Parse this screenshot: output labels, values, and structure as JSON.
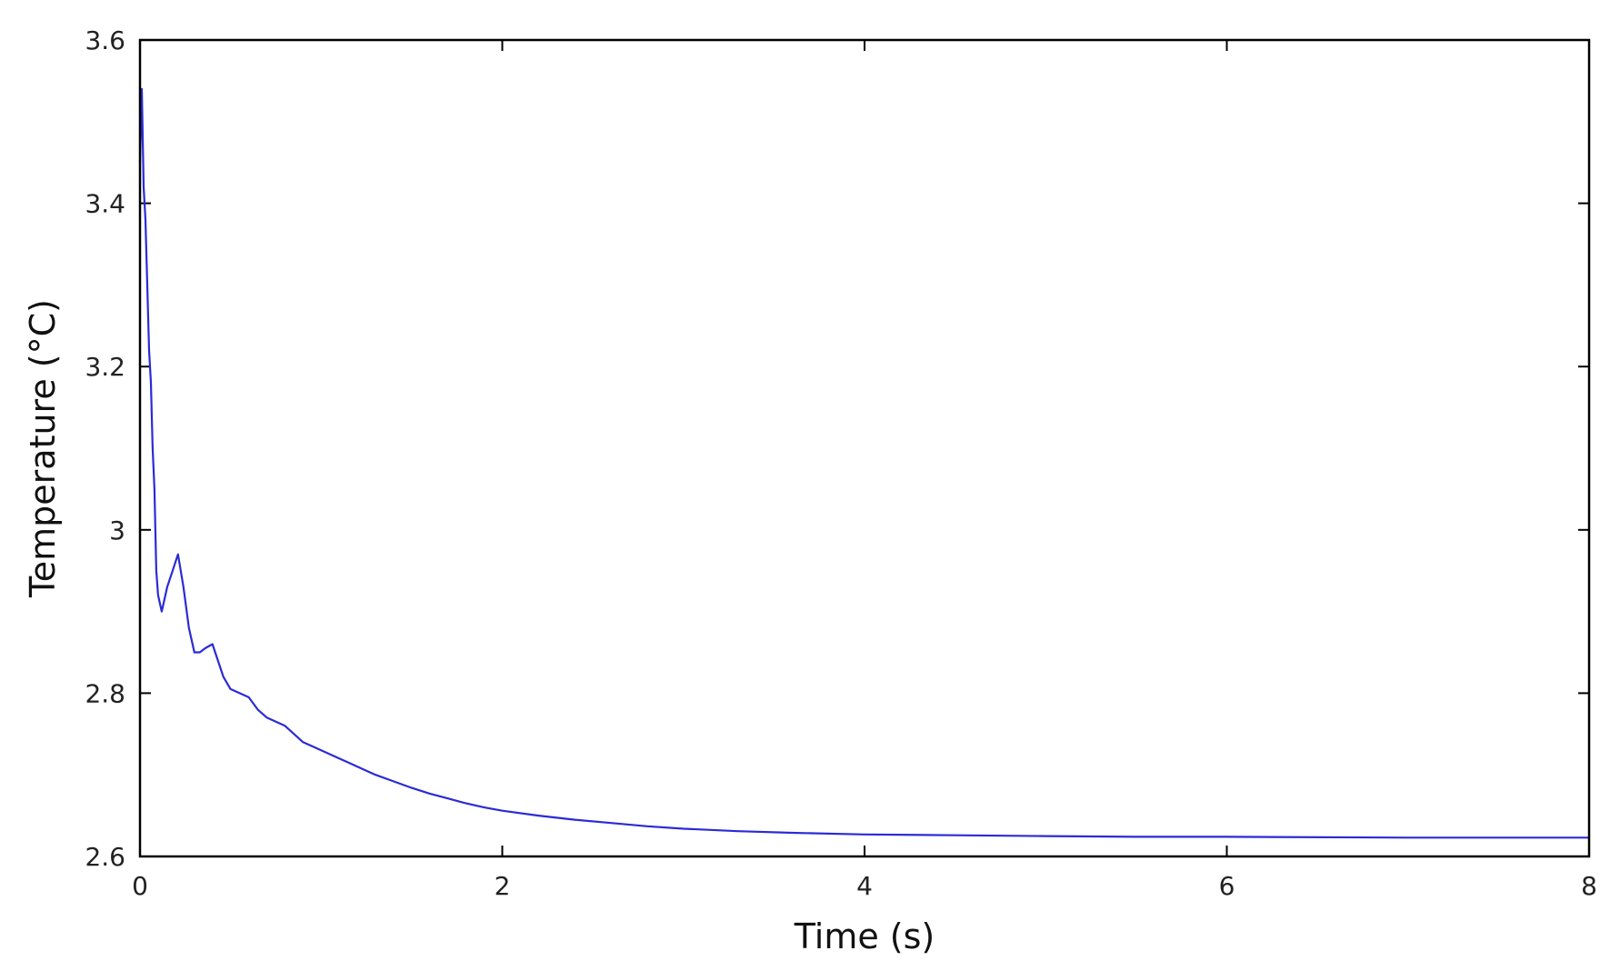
{
  "chart_data": {
    "type": "line",
    "title": "",
    "xlabel": "Time (s)",
    "ylabel": "Temperature (°C)",
    "xlim": [
      0,
      8
    ],
    "ylim": [
      2.6,
      3.6
    ],
    "x_ticks": [
      "0",
      "2",
      "4",
      "6",
      "8"
    ],
    "y_ticks": [
      "2.6",
      "2.8",
      "3",
      "3.2",
      "3.4",
      "3.6"
    ],
    "grid": false,
    "legend": "none",
    "series": [
      {
        "color": "#2b2bd6",
        "x": [
          0.0,
          0.01,
          0.02,
          0.03,
          0.04,
          0.05,
          0.06,
          0.07,
          0.08,
          0.09,
          0.1,
          0.12,
          0.15,
          0.18,
          0.21,
          0.24,
          0.27,
          0.3,
          0.33,
          0.36,
          0.4,
          0.43,
          0.46,
          0.5,
          0.55,
          0.6,
          0.65,
          0.7,
          0.75,
          0.8,
          0.85,
          0.9,
          1.0,
          1.1,
          1.2,
          1.3,
          1.4,
          1.5,
          1.6,
          1.7,
          1.8,
          1.9,
          2.0,
          2.2,
          2.4,
          2.6,
          2.8,
          3.0,
          3.3,
          3.6,
          4.0,
          4.5,
          5.0,
          5.5,
          6.0,
          7.0,
          8.0
        ],
        "y": [
          3.45,
          3.54,
          3.42,
          3.38,
          3.3,
          3.22,
          3.18,
          3.1,
          3.05,
          2.95,
          2.92,
          2.9,
          2.93,
          2.95,
          2.97,
          2.93,
          2.88,
          2.85,
          2.85,
          2.855,
          2.86,
          2.84,
          2.82,
          2.805,
          2.8,
          2.795,
          2.78,
          2.77,
          2.765,
          2.76,
          2.75,
          2.74,
          2.73,
          2.72,
          2.71,
          2.7,
          2.692,
          2.684,
          2.677,
          2.671,
          2.665,
          2.66,
          2.656,
          2.65,
          2.645,
          2.641,
          2.637,
          2.634,
          2.631,
          2.629,
          2.627,
          2.626,
          2.625,
          2.624,
          2.624,
          2.623,
          2.623
        ]
      }
    ]
  }
}
